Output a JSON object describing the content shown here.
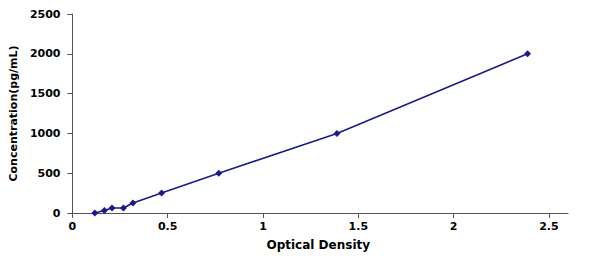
{
  "chart_data": {
    "type": "line",
    "x": [
      0.118,
      0.168,
      0.208,
      0.268,
      0.318,
      0.468,
      0.768,
      1.388,
      2.388
    ],
    "values": [
      0,
      31.25,
      62.5,
      62.5,
      125,
      250,
      500,
      1000,
      2000
    ],
    "color": "#1A1A8C",
    "marker": "diamond",
    "xlabel": "Optical Density",
    "ylabel": "Concentration(pg/mL)",
    "xlim": [
      -0.02,
      2.6
    ],
    "ylim": [
      0,
      2500
    ],
    "xticks": [
      0,
      0.5,
      1,
      1.5,
      2,
      2.5
    ],
    "yticks": [
      0,
      500,
      1000,
      1500,
      2000,
      2500
    ],
    "grid": false
  }
}
